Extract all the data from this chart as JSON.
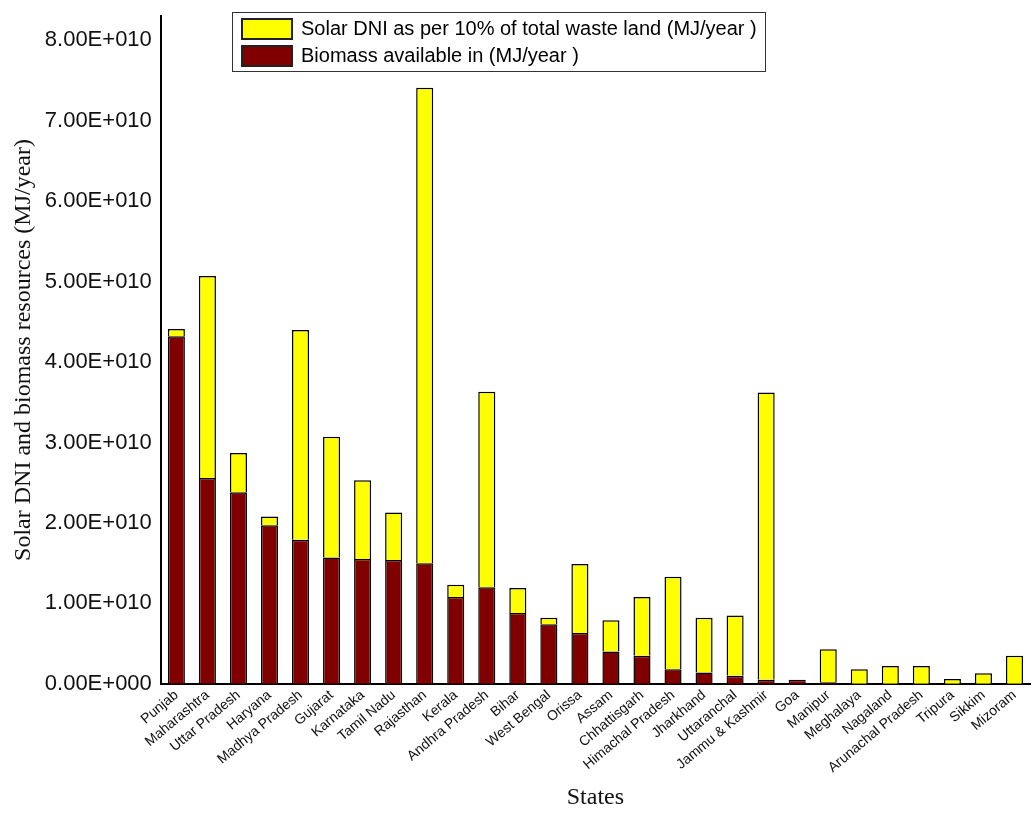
{
  "chart_data": {
    "type": "bar",
    "stacked": true,
    "xlabel": "States",
    "ylabel": "Solar DNI and biomass resources (MJ/year)",
    "categories": [
      "Punjab",
      "Maharashtra",
      "Uttar Pradesh",
      "Haryana",
      "Madhya Pradesh",
      "Gujarat",
      "Karnataka",
      "Tamil Nadu",
      "Rajasthan",
      "Kerala",
      "Andhra Pradesh",
      "Bihar",
      "West Bengal",
      "Orissa",
      "Assam",
      "Chhattisgarh",
      "Himachal Pradesh",
      "Jharkhand",
      "Uttaranchal",
      "Jammu & Kashmir",
      "Goa",
      "Manipur",
      "Meghalaya",
      "Nagaland",
      "Arunachal Pradesh",
      "Tripura",
      "Sikkim",
      "Mizoram"
    ],
    "series": [
      {
        "name": "Biomass available in (MJ/year )",
        "color": "#800000",
        "values": [
          43200000000,
          25600000000,
          23800000000,
          19700000000,
          17900000000,
          15700000000,
          15500000000,
          15400000000,
          15000000000,
          10800000000,
          12000000000,
          8800000000,
          7400000000,
          6300000000,
          4000000000,
          3500000000,
          1800000000,
          1400000000,
          1000000000,
          500000000,
          500000000,
          200000000,
          0,
          0,
          0,
          0,
          0,
          0
        ]
      },
      {
        "name": "Solar DNI as per 10% of total waste land (MJ/year )",
        "color": "#ffff00",
        "values": [
          900000000,
          25100000000,
          4900000000,
          1100000000,
          26100000000,
          15000000000,
          9800000000,
          5900000000,
          59100000000,
          1500000000,
          24300000000,
          3100000000,
          800000000,
          8600000000,
          3900000000,
          7300000000,
          11500000000,
          6800000000,
          7500000000,
          35700000000,
          0,
          4100000000,
          1800000000,
          2200000000,
          2200000000,
          600000000,
          1300000000,
          3500000000
        ]
      }
    ],
    "ylim": [
      0,
      83000000000
    ],
    "yticks": [
      {
        "value": 0,
        "label": "0.00E+000"
      },
      {
        "value": 10000000000,
        "label": "1.00E+010"
      },
      {
        "value": 20000000000,
        "label": "2.00E+010"
      },
      {
        "value": 30000000000,
        "label": "3.00E+010"
      },
      {
        "value": 40000000000,
        "label": "4.00E+010"
      },
      {
        "value": 50000000000,
        "label": "5.00E+010"
      },
      {
        "value": 60000000000,
        "label": "6.00E+010"
      },
      {
        "value": 70000000000,
        "label": "7.00E+010"
      },
      {
        "value": 80000000000,
        "label": "8.00E+010"
      }
    ],
    "grid": false,
    "legend": "top"
  }
}
